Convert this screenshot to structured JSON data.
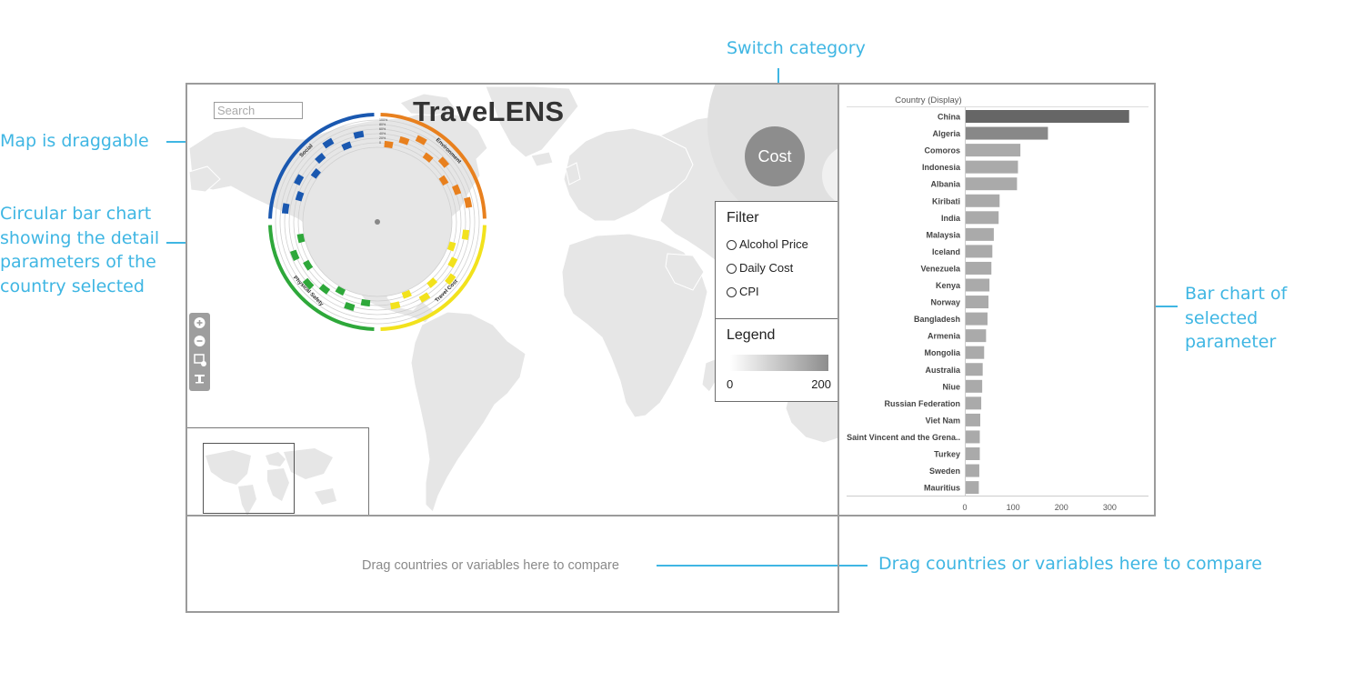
{
  "annotations": {
    "switch_category": "Switch category",
    "map_draggable": "Map is draggable",
    "circular_chart": [
      "Circular bar chart",
      "showing the detail",
      "parameters of the",
      "country selected"
    ],
    "bar_chart": [
      "Bar chart of selected",
      "parameter"
    ],
    "drag_compare": "Drag countries or variables here to compare"
  },
  "app": {
    "title": "TraveLENS",
    "search_placeholder": "Search",
    "category_button": "Cost",
    "compare_placeholder": "Drag countries or variables here to compare"
  },
  "filter": {
    "title": "Filter",
    "options": [
      "Alcohol Price",
      "Daily Cost",
      "CPI"
    ]
  },
  "legend": {
    "title": "Legend",
    "min": "0",
    "max": "200",
    "color_low": "#ffffff",
    "color_high": "#8d8d8d"
  },
  "circular_chart": {
    "categories": [
      {
        "name": "Environment",
        "color": "#e8801e"
      },
      {
        "name": "Travel Cost",
        "color": "#f2e21d"
      },
      {
        "name": "Physical Safety",
        "color": "#2ea83a"
      },
      {
        "name": "Social",
        "color": "#1a58b0"
      }
    ],
    "ring_ticks": [
      "100%",
      "80%",
      "60%",
      "40%",
      "20%",
      "0"
    ]
  },
  "chart_data": {
    "type": "bar",
    "orientation": "horizontal",
    "ylabel": "Country (Display)",
    "categories": [
      "China",
      "Algeria",
      "Comoros",
      "Indonesia",
      "Albania",
      "Kiribati",
      "India",
      "Malaysia",
      "Iceland",
      "Venezuela",
      "Kenya",
      "Norway",
      "Bangladesh",
      "Armenia",
      "Mongolia",
      "Australia",
      "Niue",
      "Russian Federation",
      "Viet Nam",
      "Saint Vincent and the Grena..",
      "Turkey",
      "Sweden",
      "Mauritius"
    ],
    "values": [
      340,
      172,
      115,
      110,
      108,
      72,
      70,
      60,
      57,
      55,
      51,
      49,
      47,
      44,
      40,
      37,
      36,
      34,
      32,
      31,
      31,
      30,
      29
    ],
    "xticks": [
      "0",
      "100",
      "200",
      "300"
    ],
    "xlim": [
      0,
      365
    ],
    "color_top": "#666666",
    "color_second": "#888888",
    "color_rest": "#aaaaaa"
  }
}
